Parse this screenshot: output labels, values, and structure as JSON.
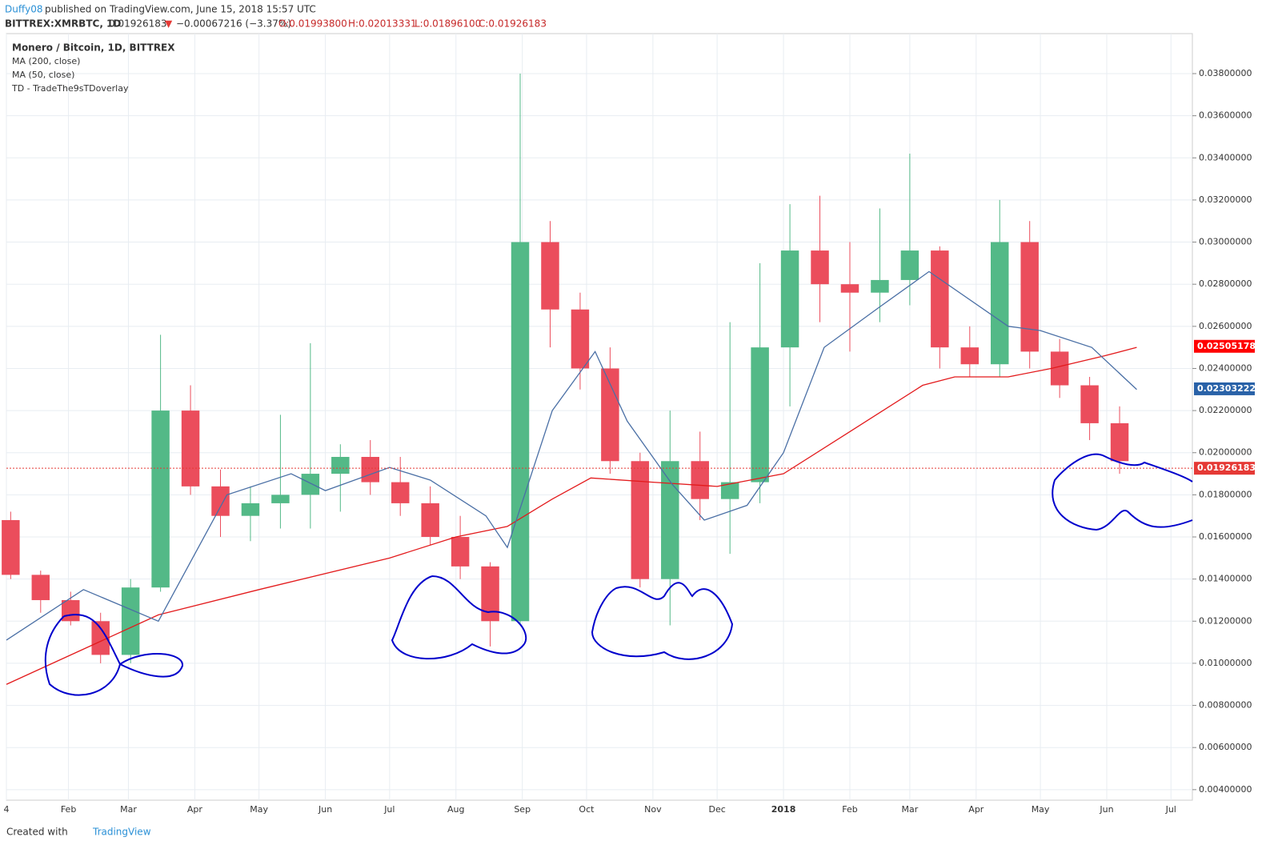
{
  "header": {
    "author": "Duffy08",
    "published": "published on TradingView.com, June 15, 2018 15:57 UTC",
    "symbol": "BITTREX:XMRBTC, 1D",
    "last": "0.01926183",
    "arrow": "▼",
    "change": "−0.00067216 (−3.37%)",
    "open": "O:0.01993800",
    "high": "H:0.02013331",
    "low": "L:0.01896100",
    "close": "C:0.01926183"
  },
  "footer": {
    "created": "Created with",
    "brand": "TradingView"
  },
  "chart_data": {
    "type": "candlestick",
    "legend": [
      "Monero / Bitcoin, 1D, BITTREX",
      "TD - TradeThe9sTDoverlay"
    ],
    "up_color": "#53b987",
    "down_color": "#eb4d5c",
    "x": [
      4,
      18,
      32,
      46,
      60,
      74,
      88,
      102,
      116,
      130,
      144,
      158,
      172,
      186,
      200,
      214,
      228,
      242,
      256,
      270,
      284,
      298,
      312,
      326,
      340,
      354,
      368,
      382,
      396,
      410,
      424,
      438,
      452,
      466,
      480,
      494,
      508,
      522
    ],
    "open": [
      0.0168,
      0.0142,
      0.013,
      0.012,
      0.0104,
      0.0136,
      0.022,
      0.0184,
      0.017,
      0.0176,
      0.018,
      0.019,
      0.0198,
      0.0186,
      0.0176,
      0.016,
      0.0146,
      0.012,
      0.03,
      0.0268,
      0.024,
      0.0196,
      0.014,
      0.0196,
      0.0178,
      0.0186,
      0.025,
      0.0296,
      0.028,
      0.0276,
      0.0282,
      0.0296,
      0.025,
      0.0242,
      0.03,
      0.0248,
      0.0232,
      0.0214
    ],
    "high": [
      0.0172,
      0.0144,
      0.0134,
      0.0124,
      0.014,
      0.0256,
      0.0232,
      0.0192,
      0.0184,
      0.0218,
      0.0252,
      0.0204,
      0.0206,
      0.0198,
      0.0184,
      0.017,
      0.0148,
      0.038,
      0.031,
      0.0276,
      0.025,
      0.02,
      0.022,
      0.021,
      0.0262,
      0.029,
      0.0318,
      0.0322,
      0.03,
      0.0316,
      0.0342,
      0.0298,
      0.026,
      0.032,
      0.031,
      0.0254,
      0.0236,
      0.0222
    ],
    "low": [
      0.014,
      0.0124,
      0.0118,
      0.01,
      0.01,
      0.0134,
      0.018,
      0.016,
      0.0158,
      0.0164,
      0.0164,
      0.0172,
      0.018,
      0.017,
      0.0156,
      0.014,
      0.0108,
      0.0118,
      0.025,
      0.023,
      0.019,
      0.0136,
      0.0118,
      0.0168,
      0.0152,
      0.0176,
      0.0222,
      0.0262,
      0.0248,
      0.0262,
      0.027,
      0.024,
      0.0236,
      0.0236,
      0.024,
      0.0226,
      0.0206,
      0.019
    ],
    "close": [
      0.0142,
      0.013,
      0.012,
      0.0104,
      0.0136,
      0.022,
      0.0184,
      0.017,
      0.0176,
      0.018,
      0.019,
      0.0198,
      0.0186,
      0.0176,
      0.016,
      0.0146,
      0.012,
      0.03,
      0.0268,
      0.024,
      0.0196,
      0.014,
      0.0196,
      0.0178,
      0.0186,
      0.025,
      0.0296,
      0.028,
      0.0276,
      0.0282,
      0.0296,
      0.025,
      0.0242,
      0.03,
      0.0248,
      0.0232,
      0.0214,
      0.0196
    ],
    "series": [
      {
        "name": "MA (200, close)",
        "color": "#e31a1c",
        "x": [
          2,
          73,
          120,
          181,
          212,
          236,
          257,
          275,
          304,
          334,
          365,
          396,
          430,
          445,
          470,
          490,
          515,
          530
        ],
        "values": [
          0.009,
          0.0123,
          0.0135,
          0.015,
          0.016,
          0.0165,
          0.0178,
          0.0188,
          0.0186,
          0.0184,
          0.019,
          0.021,
          0.0232,
          0.0236,
          0.0236,
          0.024,
          0.0246,
          0.025
        ]
      },
      {
        "name": "MA (50, close)",
        "color": "#4a6fa5",
        "x": [
          2,
          38,
          73,
          105,
          135,
          151,
          181,
          200,
          226,
          236,
          257,
          277,
          292,
          313,
          328,
          348,
          365,
          384,
          411,
          433,
          470,
          485,
          509,
          530
        ],
        "values": [
          0.0111,
          0.0135,
          0.012,
          0.018,
          0.019,
          0.0182,
          0.0193,
          0.0187,
          0.017,
          0.0155,
          0.022,
          0.0248,
          0.0215,
          0.0185,
          0.0168,
          0.0175,
          0.02,
          0.025,
          0.027,
          0.0286,
          0.026,
          0.0258,
          0.025,
          0.023
        ]
      }
    ],
    "price_labels": [
      {
        "value": 0.02505178,
        "color": "#ff0000"
      },
      {
        "value": 0.02303222,
        "color": "#2962a8"
      },
      {
        "value": 0.01926183,
        "color": "#e53935"
      }
    ],
    "xlim": [
      2,
      556
    ],
    "ylim": [
      0.0035,
      0.0399
    ],
    "xticks": [
      {
        "value": 2,
        "label": "4"
      },
      {
        "value": 31,
        "label": "Feb"
      },
      {
        "value": 59,
        "label": "Mar"
      },
      {
        "value": 90,
        "label": "Apr"
      },
      {
        "value": 120,
        "label": "May"
      },
      {
        "value": 151,
        "label": "Jun"
      },
      {
        "value": 181,
        "label": "Jul"
      },
      {
        "value": 212,
        "label": "Aug"
      },
      {
        "value": 243,
        "label": "Sep"
      },
      {
        "value": 273,
        "label": "Oct"
      },
      {
        "value": 304,
        "label": "Nov"
      },
      {
        "value": 334,
        "label": "Dec"
      },
      {
        "value": 365,
        "label": "2018"
      },
      {
        "value": 396,
        "label": "Feb"
      },
      {
        "value": 424,
        "label": "Mar"
      },
      {
        "value": 455,
        "label": "Apr"
      },
      {
        "value": 485,
        "label": "May"
      },
      {
        "value": 516,
        "label": "Jun"
      },
      {
        "value": 546,
        "label": "Jul"
      }
    ],
    "yticks": [
      {
        "value": 0.004,
        "label": "0.00400000"
      },
      {
        "value": 0.006,
        "label": "0.00600000"
      },
      {
        "value": 0.008,
        "label": "0.00800000"
      },
      {
        "value": 0.01,
        "label": "0.01000000"
      },
      {
        "value": 0.012,
        "label": "0.01200000"
      },
      {
        "value": 0.014,
        "label": "0.01400000"
      },
      {
        "value": 0.016,
        "label": "0.01600000"
      },
      {
        "value": 0.018,
        "label": "0.01800000"
      },
      {
        "value": 0.02,
        "label": "0.02000000"
      },
      {
        "value": 0.022,
        "label": "0.02200000"
      },
      {
        "value": 0.024,
        "label": "0.02400000"
      },
      {
        "value": 0.026,
        "label": "0.02600000"
      },
      {
        "value": 0.028,
        "label": "0.02800000"
      },
      {
        "value": 0.03,
        "label": "0.03000000"
      },
      {
        "value": 0.032,
        "label": "0.03200000"
      },
      {
        "value": 0.034,
        "label": "0.03400000"
      },
      {
        "value": 0.036,
        "label": "0.03600000"
      },
      {
        "value": 0.038,
        "label": "0.03800000"
      }
    ],
    "grid": true
  }
}
